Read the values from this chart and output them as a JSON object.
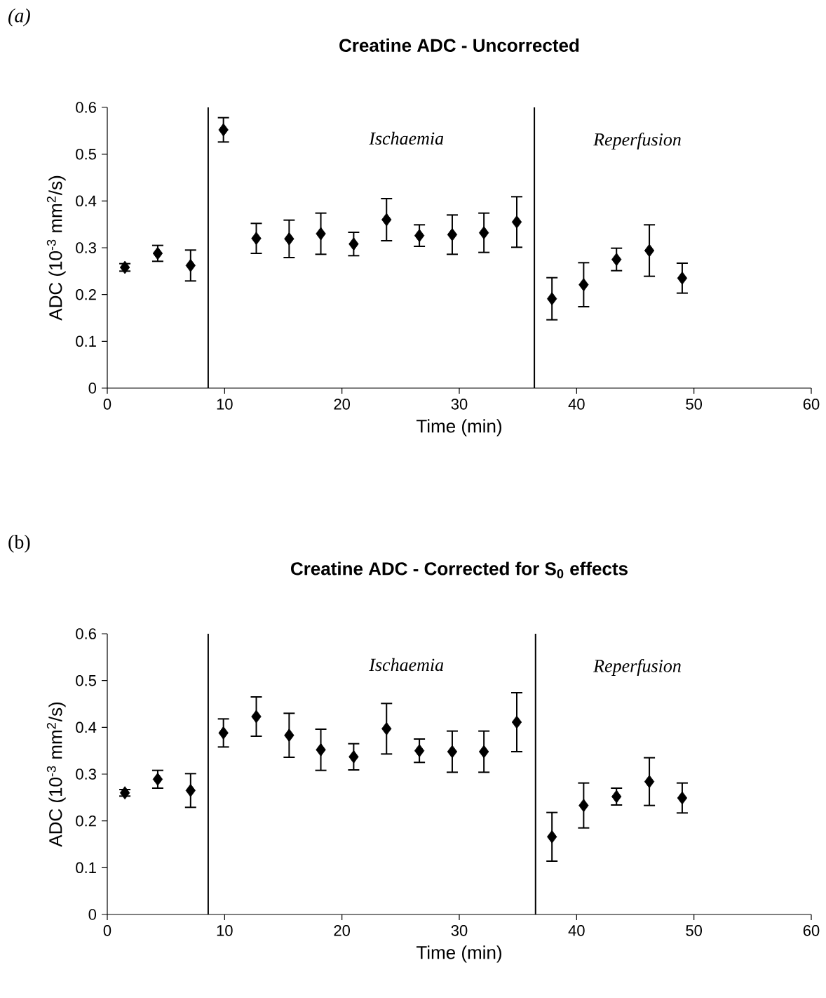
{
  "chart_data": [
    {
      "type": "scatter",
      "title": "Creatine ADC - Uncorrected",
      "xlabel": "Time (min)",
      "ylabel": "ADC (10$^{-3}$ mm$^{2}$/s)",
      "x": [
        1.5,
        4.3,
        7.1,
        9.9,
        12.7,
        15.5,
        18.2,
        21.0,
        23.8,
        26.6,
        29.4,
        32.1,
        34.9,
        37.9,
        40.6,
        43.4,
        46.2,
        49.0
      ],
      "values": [
        0.258,
        0.288,
        0.262,
        0.552,
        0.32,
        0.319,
        0.33,
        0.308,
        0.36,
        0.326,
        0.328,
        0.332,
        0.355,
        0.191,
        0.221,
        0.275,
        0.294,
        0.235
      ],
      "errors": [
        0.008,
        0.017,
        0.033,
        0.026,
        0.032,
        0.04,
        0.044,
        0.025,
        0.045,
        0.023,
        0.042,
        0.042,
        0.054,
        0.045,
        0.047,
        0.024,
        0.055,
        0.032
      ],
      "color": "#000000",
      "marker": "diamond",
      "xlim": [
        0,
        60
      ],
      "ylim": [
        0,
        0.6
      ],
      "xticks": [
        0,
        10,
        20,
        30,
        40,
        50,
        60
      ],
      "yticks": [
        0,
        0.1,
        0.2,
        0.3,
        0.4,
        0.5,
        0.6
      ],
      "ref_lines": [
        {
          "axis": "x",
          "value": 8.6,
          "color": "#000000"
        },
        {
          "axis": "x",
          "value": 36.4,
          "color": "#000000"
        }
      ],
      "annotations": [
        "*(a)*",
        "*Ischaemia*",
        "*Reperfusion*"
      ]
    },
    {
      "type": "scatter",
      "title": "Creatine ADC - Corrected for S$_{0}$ effects",
      "xlabel": "Time (min)",
      "ylabel": "ADC (10$^{-3}$ mm$^{2}$/s)",
      "x": [
        1.5,
        4.3,
        7.1,
        9.9,
        12.7,
        15.5,
        18.2,
        21.0,
        23.8,
        26.6,
        29.4,
        32.1,
        34.9,
        37.9,
        40.6,
        43.4,
        46.2,
        49.0
      ],
      "values": [
        0.26,
        0.289,
        0.265,
        0.388,
        0.423,
        0.383,
        0.352,
        0.337,
        0.397,
        0.35,
        0.348,
        0.348,
        0.411,
        0.166,
        0.233,
        0.252,
        0.284,
        0.249
      ],
      "errors": [
        0.007,
        0.019,
        0.036,
        0.03,
        0.042,
        0.047,
        0.044,
        0.028,
        0.054,
        0.025,
        0.044,
        0.044,
        0.063,
        0.052,
        0.048,
        0.018,
        0.051,
        0.032
      ],
      "color": "#000000",
      "marker": "diamond",
      "xlim": [
        0,
        60
      ],
      "ylim": [
        0,
        0.6
      ],
      "xticks": [
        0,
        10,
        20,
        30,
        40,
        50,
        60
      ],
      "yticks": [
        0,
        0.1,
        0.2,
        0.3,
        0.4,
        0.5,
        0.6
      ],
      "ref_lines": [
        {
          "axis": "x",
          "value": 8.6,
          "color": "#000000"
        },
        {
          "axis": "x",
          "value": 36.5,
          "color": "#000000"
        }
      ],
      "annotations": [
        "(b)",
        "*Ischaemia*",
        "*Reperfusion*"
      ]
    }
  ]
}
